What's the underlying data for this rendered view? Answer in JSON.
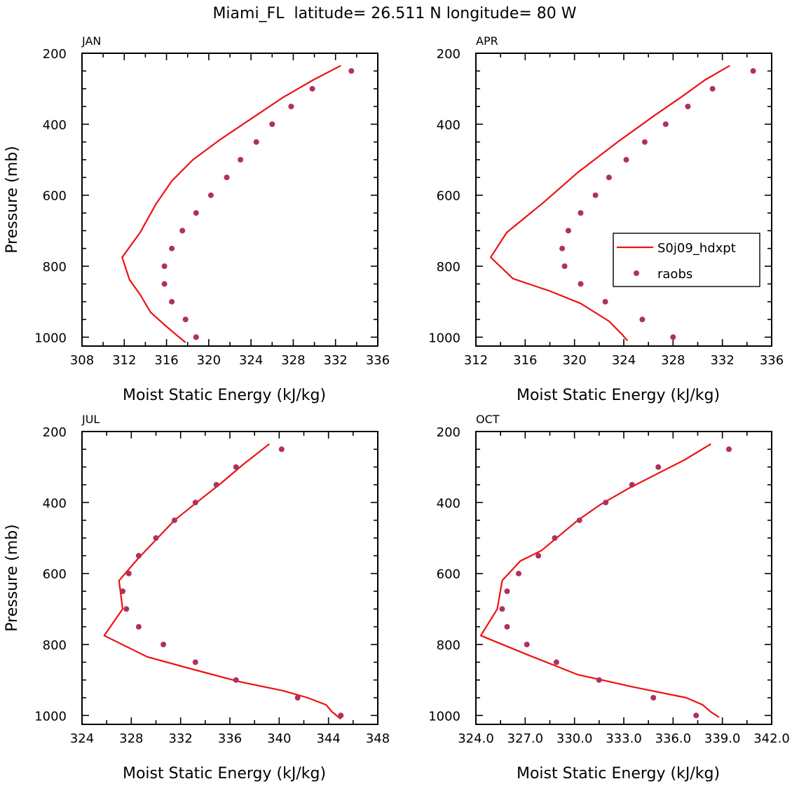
{
  "title": "Miami_FL  latitude= 26.511 N longitude= 80 W",
  "colors": {
    "model": "#ee1111",
    "obs": "#b03060",
    "axis": "#000000"
  },
  "legend": {
    "model_label": "S0j09_hdxpt",
    "obs_label": "raobs"
  },
  "chart_data": [
    {
      "type": "line",
      "month": "JAN",
      "xlabel": "Moist Static Energy (kJ/kg)",
      "ylabel": "Pressure (mb)",
      "xlim": [
        308,
        336
      ],
      "ylim": [
        1025,
        200
      ],
      "xticks": [
        "308",
        "312",
        "316",
        "320",
        "324",
        "328",
        "332",
        "336"
      ],
      "yticks": [
        "200",
        "400",
        "600",
        "800",
        "1000"
      ],
      "series": [
        {
          "name": "S0j09_hdxpt",
          "x": [
            317.8,
            317.0,
            315.8,
            314.5,
            313.5,
            312.5,
            311.8,
            313.5,
            315.0,
            316.5,
            318.5,
            321.0,
            324.0,
            327.0,
            329.9,
            332.5
          ],
          "y": [
            1015,
            995,
            965,
            930,
            880,
            838,
            775,
            705,
            625,
            560,
            500,
            445,
            385,
            325,
            275,
            235
          ]
        },
        {
          "name": "raobs",
          "x": [
            318.8,
            317.8,
            316.5,
            315.8,
            315.8,
            316.5,
            317.5,
            318.8,
            320.2,
            321.7,
            323.0,
            324.5,
            326.0,
            327.8,
            329.8,
            333.5
          ],
          "y": [
            1000,
            950,
            900,
            850,
            800,
            750,
            700,
            650,
            600,
            550,
            500,
            450,
            400,
            350,
            300,
            250
          ]
        }
      ]
    },
    {
      "type": "line",
      "month": "APR",
      "xlabel": "Moist Static Energy (kJ/kg)",
      "ylabel": "",
      "xlim": [
        312,
        336
      ],
      "ylim": [
        1025,
        200
      ],
      "xticks": [
        "312",
        "316",
        "320",
        "324",
        "328",
        "332",
        "336"
      ],
      "yticks": [
        "200",
        "400",
        "600",
        "800",
        "1000"
      ],
      "series": [
        {
          "name": "S0j09_hdxpt",
          "x": [
            324.3,
            323.8,
            322.8,
            320.5,
            318.0,
            315.0,
            313.2,
            314.5,
            317.5,
            320.3,
            323.5,
            326.5,
            328.6,
            330.6,
            332.6
          ],
          "y": [
            1010,
            990,
            955,
            905,
            870,
            835,
            775,
            705,
            620,
            535,
            450,
            375,
            325,
            275,
            235
          ]
        },
        {
          "name": "raobs",
          "x": [
            328.0,
            325.5,
            322.5,
            320.5,
            319.2,
            319.0,
            319.5,
            320.5,
            321.7,
            322.8,
            324.2,
            325.7,
            327.4,
            329.2,
            331.2,
            334.5
          ],
          "y": [
            1000,
            950,
            900,
            850,
            800,
            750,
            700,
            650,
            600,
            550,
            500,
            450,
            400,
            350,
            300,
            250
          ]
        }
      ]
    },
    {
      "type": "line",
      "month": "JUL",
      "xlabel": "Moist Static Energy (kJ/kg)",
      "ylabel": "Pressure (mb)",
      "xlim": [
        324,
        348
      ],
      "ylim": [
        1025,
        200
      ],
      "xticks": [
        "324",
        "328",
        "332",
        "336",
        "340",
        "344",
        "348"
      ],
      "yticks": [
        "200",
        "400",
        "600",
        "800",
        "1000"
      ],
      "series": [
        {
          "name": "S0j09_hdxpt",
          "x": [
            345.0,
            344.3,
            343.8,
            342.3,
            340.3,
            336.8,
            333.0,
            329.3,
            325.8,
            327.3,
            327.0,
            328.5,
            330.0,
            331.5,
            333.3,
            335.3,
            337.0,
            339.2
          ],
          "y": [
            1010,
            990,
            970,
            950,
            930,
            905,
            870,
            835,
            775,
            700,
            620,
            560,
            505,
            450,
            400,
            345,
            295,
            235
          ]
        },
        {
          "name": "raobs",
          "x": [
            345.0,
            341.5,
            336.5,
            333.2,
            330.6,
            328.6,
            327.6,
            327.3,
            327.8,
            328.6,
            330.0,
            331.5,
            333.2,
            334.9,
            336.5,
            340.2
          ],
          "y": [
            1000,
            950,
            900,
            850,
            800,
            750,
            700,
            650,
            600,
            550,
            500,
            450,
            400,
            350,
            300,
            250
          ]
        }
      ]
    },
    {
      "type": "line",
      "month": "OCT",
      "xlabel": "Moist Static Energy (kJ/kg)",
      "ylabel": "",
      "xlim": [
        324.0,
        342.0
      ],
      "ylim": [
        1025,
        200
      ],
      "xticks": [
        "324.0",
        "327.0",
        "330.0",
        "333.0",
        "336.0",
        "339.0",
        "342.0"
      ],
      "yticks": [
        "200",
        "400",
        "600",
        "800",
        "1000"
      ],
      "series": [
        {
          "name": "S0j09_hdxpt",
          "x": [
            338.8,
            338.3,
            337.8,
            336.8,
            333.6,
            330.2,
            327.2,
            324.3,
            325.3,
            325.6,
            326.7,
            328.0,
            330.2,
            331.6,
            333.3,
            335.2,
            336.7,
            338.3
          ],
          "y": [
            1005,
            990,
            970,
            950,
            920,
            885,
            830,
            775,
            700,
            620,
            565,
            535,
            450,
            405,
            360,
            315,
            280,
            235
          ]
        },
        {
          "name": "raobs",
          "x": [
            337.4,
            334.8,
            331.5,
            328.9,
            327.1,
            325.9,
            325.6,
            325.9,
            326.6,
            327.8,
            328.8,
            330.3,
            331.9,
            333.5,
            335.1,
            339.4
          ],
          "y": [
            1000,
            950,
            900,
            850,
            800,
            750,
            700,
            650,
            600,
            550,
            500,
            450,
            400,
            350,
            300,
            250
          ]
        }
      ]
    }
  ]
}
